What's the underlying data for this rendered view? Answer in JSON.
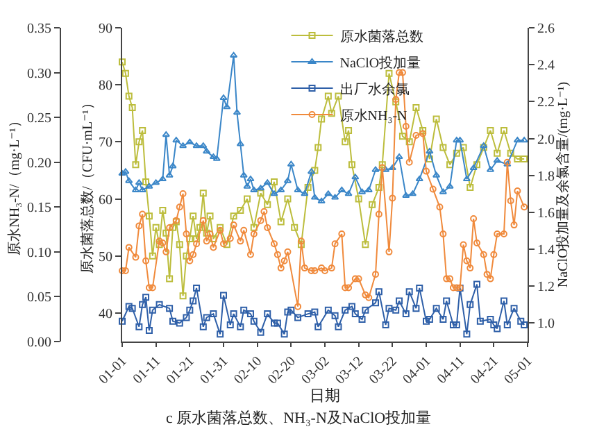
{
  "chart_data": {
    "type": "line",
    "title": "c 原水菌落总数、NH₃-N及NaClO投加量",
    "xlabel": "日期",
    "ylabel": "原水菌落总数/（CFU·mL⁻¹）",
    "y2label": "NaClO投加量及余氯含量/(mg·L⁻¹)",
    "y3label": "原水NH₃-N/（mg·L⁻¹）",
    "xlim": [
      "--01-01",
      "--05-01"
    ],
    "xticks": [
      {
        "value": "--01-01",
        "label": "01-01"
      },
      {
        "value": "--01-11",
        "label": "01-11"
      },
      {
        "value": "--01-21",
        "label": "01-21"
      },
      {
        "value": "--01-31",
        "label": "01-31"
      },
      {
        "value": "--02-10",
        "label": "02-10"
      },
      {
        "value": "--02-20",
        "label": "02-20"
      },
      {
        "value": "--03-02",
        "label": "03-02"
      },
      {
        "value": "--03-12",
        "label": "03-12"
      },
      {
        "value": "--03-22",
        "label": "03-22"
      },
      {
        "value": "--04-01",
        "label": "04-01"
      },
      {
        "value": "--04-11",
        "label": "04-11"
      },
      {
        "value": "--04-21",
        "label": "04-21"
      },
      {
        "value": "--05-01",
        "label": "05-01"
      }
    ],
    "ylim": [
      35,
      90
    ],
    "yticks": [
      40,
      50,
      60,
      70,
      80,
      90
    ],
    "y2lim": [
      0.9,
      2.6
    ],
    "y2ticks": [
      {
        "value": 1.0,
        "label": "1.0"
      },
      {
        "value": 1.2,
        "label": "1.2"
      },
      {
        "value": 1.4,
        "label": "1.4"
      },
      {
        "value": 1.6,
        "label": "1.6"
      },
      {
        "value": 1.8,
        "label": "1.8"
      },
      {
        "value": 2.0,
        "label": "2.0"
      },
      {
        "value": 2.2,
        "label": "2.2"
      },
      {
        "value": 2.4,
        "label": "2.4"
      },
      {
        "value": 2.6,
        "label": "2.6"
      }
    ],
    "y3lim": [
      0,
      0.35
    ],
    "y3ticks": [
      {
        "value": 0,
        "label": "0.00"
      },
      {
        "value": 0.05,
        "label": "0.05"
      },
      {
        "value": 0.1,
        "label": "0.10"
      },
      {
        "value": 0.15,
        "label": "0.15"
      },
      {
        "value": 0.2,
        "label": "0.20"
      },
      {
        "value": 0.25,
        "label": "0.25"
      },
      {
        "value": 0.3,
        "label": "0.30"
      },
      {
        "value": 0.35,
        "label": "0.35"
      }
    ],
    "grid": false,
    "legend": "top right",
    "line_style": "solid",
    "series": [
      {
        "name": "原水菌落总数",
        "color": "#bcbd3c",
        "marker": "square",
        "x": [
          "--01-01",
          "--01-02",
          "--01-03",
          "--01-04",
          "--01-05",
          "--01-06",
          "--01-07",
          "--01-08",
          "--01-09",
          "--01-10",
          "--01-11",
          "--01-12",
          "--01-13",
          "--01-14",
          "--01-15",
          "--01-16",
          "--01-17",
          "--01-18",
          "--01-19",
          "--01-20",
          "--01-21",
          "--01-22",
          "--01-23",
          "--01-24",
          "--01-25",
          "--01-26",
          "--01-27",
          "--01-28",
          "--01-30",
          "--02-01",
          "--02-03",
          "--02-05",
          "--02-07",
          "--02-09",
          "--02-11",
          "--02-13",
          "--02-15",
          "--02-17",
          "--02-19",
          "--02-21",
          "--02-23",
          "--02-25",
          "--02-27",
          "--02-28",
          "--03-01",
          "--03-03",
          "--03-04",
          "--03-06",
          "--03-08",
          "--03-09",
          "--03-10",
          "--03-12",
          "--03-14",
          "--03-16",
          "--03-18",
          "--03-19",
          "--03-21",
          "--03-23",
          "--03-25",
          "--03-27",
          "--03-29",
          "--03-31",
          "--04-02",
          "--04-04",
          "--04-06",
          "--04-08",
          "--04-10",
          "--04-12",
          "--04-14",
          "--04-16",
          "--04-18",
          "--04-20",
          "--04-22",
          "--04-24",
          "--04-26",
          "--04-28",
          "--04-30"
        ],
        "values": [
          84,
          82,
          78,
          76,
          66,
          70,
          72,
          63,
          57,
          50,
          55,
          52,
          58,
          54,
          46,
          55,
          56,
          52,
          43,
          50,
          53,
          57,
          53,
          55,
          61,
          54,
          57,
          53,
          55,
          52,
          57,
          58,
          60,
          55,
          61,
          59,
          63,
          56,
          60,
          55,
          52,
          62,
          65,
          69,
          74,
          78,
          75,
          78,
          70,
          72,
          66,
          60,
          52,
          59,
          62,
          66,
          82,
          77,
          71,
          70,
          76,
          72,
          67,
          74,
          69,
          66,
          68,
          69,
          62,
          66,
          69,
          72,
          68,
          72,
          68,
          67,
          67
        ]
      },
      {
        "name": "NaClO投加量",
        "color": "#3a86c8",
        "marker": "triangle",
        "axis": "y2",
        "x": [
          "--01-01",
          "--01-02",
          "--01-03",
          "--01-05",
          "--01-06",
          "--01-07",
          "--01-09",
          "--01-11",
          "--01-13",
          "--01-14",
          "--01-15",
          "--01-16",
          "--01-17",
          "--01-19",
          "--01-21",
          "--01-23",
          "--01-25",
          "--01-26",
          "--01-28",
          "--01-29",
          "--01-31",
          "--02-01",
          "--02-03",
          "--02-04",
          "--02-05",
          "--02-06",
          "--02-07",
          "--02-08",
          "--02-09",
          "--02-11",
          "--02-13",
          "--02-15",
          "--02-17",
          "--02-19",
          "--02-20",
          "--02-22",
          "--02-24",
          "--02-26",
          "--02-27",
          "--03-01",
          "--03-03",
          "--03-05",
          "--03-07",
          "--03-09",
          "--03-11",
          "--03-13",
          "--03-15",
          "--03-17",
          "--03-20",
          "--03-22",
          "--03-24",
          "--03-26",
          "--03-28",
          "--03-30",
          "--04-02",
          "--04-04",
          "--04-06",
          "--04-08",
          "--04-10",
          "--04-11",
          "--04-13",
          "--04-15",
          "--04-18",
          "--04-20",
          "--04-22",
          "--04-25",
          "--04-28",
          "--04-30"
        ],
        "values": [
          1.81,
          1.82,
          1.77,
          1.72,
          1.76,
          1.72,
          1.74,
          1.76,
          1.78,
          2.02,
          1.8,
          1.85,
          1.99,
          1.96,
          1.98,
          1.96,
          1.96,
          1.93,
          1.9,
          1.89,
          2.22,
          2.17,
          2.45,
          2.14,
          1.97,
          1.8,
          1.74,
          1.78,
          1.72,
          1.73,
          1.76,
          1.7,
          1.72,
          1.77,
          1.86,
          1.72,
          1.7,
          1.82,
          1.68,
          1.66,
          1.7,
          1.68,
          1.72,
          1.7,
          1.79,
          1.71,
          1.72,
          1.83,
          1.83,
          1.84,
          1.9,
          1.69,
          1.7,
          1.78,
          1.93,
          1.8,
          1.71,
          1.74,
          1.99,
          1.99,
          1.78,
          1.84,
          1.96,
          1.83,
          1.88,
          1.86,
          1.99,
          1.99
        ]
      },
      {
        "name": "出厂水余氯",
        "color": "#2e5fa8",
        "marker": "square",
        "axis": "y2",
        "x": [
          "--01-01",
          "--01-03",
          "--01-04",
          "--01-06",
          "--01-07",
          "--01-08",
          "--01-09",
          "--01-10",
          "--01-12",
          "--01-15",
          "--01-16",
          "--01-18",
          "--01-20",
          "--01-21",
          "--01-22",
          "--01-23",
          "--01-25",
          "--01-26",
          "--01-28",
          "--01-30",
          "--01-31",
          "--02-02",
          "--02-03",
          "--02-05",
          "--02-06",
          "--02-08",
          "--02-09",
          "--02-11",
          "--02-13",
          "--02-15",
          "--02-16",
          "--02-18",
          "--02-19",
          "--02-20",
          "--02-22",
          "--02-25",
          "--02-27",
          "--02-28",
          "--03-03",
          "--03-05",
          "--03-06",
          "--03-08",
          "--03-10",
          "--03-11",
          "--03-13",
          "--03-14",
          "--03-17",
          "--03-18",
          "--03-20",
          "--03-21",
          "--03-23",
          "--03-24",
          "--03-26",
          "--03-27",
          "--03-29",
          "--03-30",
          "--04-01",
          "--04-02",
          "--04-04",
          "--04-06",
          "--04-07",
          "--04-09",
          "--04-10",
          "--04-11",
          "--04-13",
          "--04-14",
          "--04-16",
          "--04-17",
          "--04-20",
          "--04-21",
          "--04-22",
          "--04-24",
          "--04-25",
          "--04-27",
          "--04-29",
          "--04-30"
        ],
        "values": [
          1.01,
          1.09,
          1.08,
          0.98,
          1.1,
          1.14,
          0.96,
          1.07,
          1.1,
          1.08,
          1.01,
          1.0,
          1.03,
          1.07,
          1.12,
          1.19,
          0.98,
          1.03,
          1.05,
          0.94,
          1.15,
          0.99,
          1.05,
          0.98,
          1.07,
          1.05,
          1.01,
          0.95,
          1.05,
          1.0,
          1.0,
          0.94,
          1.06,
          1.07,
          1.03,
          1.05,
          1.06,
          0.98,
          1.07,
          1.04,
          0.98,
          1.07,
          1.09,
          1.05,
          1.02,
          1.07,
          1.11,
          1.17,
          0.99,
          1.08,
          1.07,
          1.12,
          1.05,
          1.17,
          1.08,
          1.19,
          1.01,
          1.02,
          1.08,
          1.02,
          1.12,
          0.99,
          0.99,
          1.19,
          0.94,
          1.1,
          1.21,
          1.01,
          1.02,
          0.99,
          0.97,
          1.12,
          0.99,
          1.08,
          1.01,
          0.99
        ]
      },
      {
        "name": "原水NH₃-N",
        "color": "#f08a3c",
        "marker": "circle",
        "axis": "y3",
        "x": [
          "--01-01",
          "--01-02",
          "--01-03",
          "--01-05",
          "--01-06",
          "--01-07",
          "--01-08",
          "--01-09",
          "--01-10",
          "--01-12",
          "--01-13",
          "--01-14",
          "--01-15",
          "--01-17",
          "--01-18",
          "--01-19",
          "--01-20",
          "--01-21",
          "--01-22",
          "--01-23",
          "--01-25",
          "--01-26",
          "--01-27",
          "--01-28",
          "--01-30",
          "--01-31",
          "--02-02",
          "--02-03",
          "--02-05",
          "--02-06",
          "--02-08",
          "--02-09",
          "--02-11",
          "--02-12",
          "--02-13",
          "--02-15",
          "--02-16",
          "--02-17",
          "--02-18",
          "--02-19",
          "--02-22",
          "--02-23",
          "--02-24",
          "--02-26",
          "--02-27",
          "--03-01",
          "--03-02",
          "--03-04",
          "--03-05",
          "--03-07",
          "--03-08",
          "--03-09",
          "--03-11",
          "--03-12",
          "--03-14",
          "--03-15",
          "--03-17",
          "--03-18",
          "--03-19",
          "--03-21",
          "--03-22",
          "--03-23",
          "--03-24",
          "--03-25",
          "--03-26",
          "--03-27",
          "--03-29",
          "--03-31",
          "--04-01",
          "--04-03",
          "--04-05",
          "--04-06",
          "--04-07",
          "--04-08",
          "--04-09",
          "--04-10",
          "--04-11",
          "--04-12",
          "--04-13",
          "--04-14",
          "--04-15",
          "--04-16",
          "--04-18",
          "--04-19",
          "--04-20",
          "--04-21",
          "--04-22",
          "--04-24",
          "--04-25",
          "--04-26",
          "--04-27",
          "--04-28",
          "--04-30"
        ],
        "values": [
          0.079,
          0.079,
          0.105,
          0.094,
          0.129,
          0.142,
          0.09,
          0.06,
          0.06,
          0.112,
          0.11,
          0.1,
          0.127,
          0.135,
          0.15,
          0.165,
          0.12,
          0.09,
          0.097,
          0.109,
          0.135,
          0.112,
          0.12,
          0.105,
          0.124,
          0.109,
          0.115,
          0.13,
          0.112,
          0.124,
          0.097,
          0.12,
          0.135,
          0.145,
          0.127,
          0.109,
          0.097,
          0.082,
          0.09,
          0.1,
          0.039,
          0.112,
          0.082,
          0.079,
          0.079,
          0.082,
          0.079,
          0.082,
          0.109,
          0.12,
          0.06,
          0.06,
          0.07,
          0.07,
          0.052,
          0.049,
          0.075,
          0.142,
          0.194,
          0.1,
          0.16,
          0.27,
          0.3,
          0.3,
          0.24,
          0.2,
          0.23,
          0.232,
          0.19,
          0.17,
          0.15,
          0.12,
          0.07,
          0.07,
          0.06,
          0.06,
          0.06,
          0.108,
          0.09,
          0.082,
          0.137,
          0.11,
          0.097,
          0.075,
          0.07,
          0.097,
          0.12,
          0.12,
          0.2,
          0.157,
          0.13,
          0.168,
          0.15
        ]
      }
    ]
  }
}
